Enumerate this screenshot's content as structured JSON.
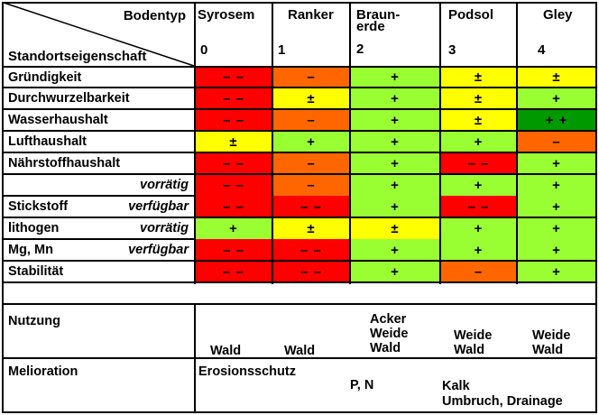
{
  "header": {
    "bodentyp_label": "Bodentyp",
    "standort_label": "Standortseigenschaft",
    "columns": [
      {
        "name": "Syrosem",
        "index": "0"
      },
      {
        "name": "Ranker",
        "index": "1"
      },
      {
        "name": "Braun-\nerde",
        "index": "2"
      },
      {
        "name": "Podsol",
        "index": "3"
      },
      {
        "name": "Gley",
        "index": "4"
      }
    ]
  },
  "rows": [
    {
      "label": "Gründigkeit",
      "sub": "",
      "cells": [
        {
          "symbol": "– –",
          "color": "#ff0000"
        },
        {
          "symbol": "–",
          "color": "#ff6600"
        },
        {
          "symbol": "+",
          "color": "#99ff33"
        },
        {
          "symbol": "±",
          "color": "#ffff00"
        },
        {
          "symbol": "±",
          "color": "#ffff00"
        }
      ]
    },
    {
      "label": "Durchwurzelbarkeit",
      "sub": "",
      "cells": [
        {
          "symbol": "– –",
          "color": "#ff0000"
        },
        {
          "symbol": "±",
          "color": "#ffff00"
        },
        {
          "symbol": "+",
          "color": "#99ff33"
        },
        {
          "symbol": "±",
          "color": "#ffff00"
        },
        {
          "symbol": "+",
          "color": "#99ff33"
        }
      ]
    },
    {
      "label": "Wasserhaushalt",
      "sub": "",
      "cells": [
        {
          "symbol": "– –",
          "color": "#ff0000"
        },
        {
          "symbol": "–",
          "color": "#ff6600"
        },
        {
          "symbol": "+",
          "color": "#99ff33"
        },
        {
          "symbol": "±",
          "color": "#ffff00"
        },
        {
          "symbol": "+ +",
          "color": "#009900"
        }
      ]
    },
    {
      "label": "Lufthaushalt",
      "sub": "",
      "cells": [
        {
          "symbol": "±",
          "color": "#ffff00"
        },
        {
          "symbol": "+",
          "color": "#99ff33"
        },
        {
          "symbol": "+",
          "color": "#99ff33"
        },
        {
          "symbol": "+",
          "color": "#99ff33"
        },
        {
          "symbol": "–",
          "color": "#ff6600"
        }
      ]
    },
    {
      "label": "Nährstoffhaushalt",
      "sub": "",
      "cells": [
        {
          "symbol": "– –",
          "color": "#ff0000"
        },
        {
          "symbol": "–",
          "color": "#ff6600"
        },
        {
          "symbol": "+",
          "color": "#99ff33"
        },
        {
          "symbol": "– –",
          "color": "#ff0000"
        },
        {
          "symbol": "+",
          "color": "#99ff33"
        }
      ]
    },
    {
      "label": "",
      "sub": "vorrätig",
      "cells": [
        {
          "symbol": "– –",
          "color": "#ff0000"
        },
        {
          "symbol": "–",
          "color": "#ff6600"
        },
        {
          "symbol": "+",
          "color": "#99ff33"
        },
        {
          "symbol": "+",
          "color": "#99ff33"
        },
        {
          "symbol": "+",
          "color": "#99ff33"
        }
      ]
    },
    {
      "label": "Stickstoff",
      "sub": "verfügbar",
      "cells": [
        {
          "symbol": "– –",
          "color": "#ff0000"
        },
        {
          "symbol": "– –",
          "color": "#ff0000"
        },
        {
          "symbol": "+",
          "color": "#99ff33"
        },
        {
          "symbol": "– –",
          "color": "#ff0000"
        },
        {
          "symbol": "+",
          "color": "#99ff33"
        }
      ]
    },
    {
      "label": "lithogen",
      "sub": "vorrätig",
      "cells": [
        {
          "symbol": "+",
          "color": "#99ff33"
        },
        {
          "symbol": "±",
          "color": "#ffff00"
        },
        {
          "symbol": "±",
          "color": "#ffff00"
        },
        {
          "symbol": "+",
          "color": "#99ff33"
        },
        {
          "symbol": "+",
          "color": "#99ff33"
        }
      ]
    },
    {
      "label": "Mg, Mn",
      "sub": "verfügbar",
      "cells": [
        {
          "symbol": "– –",
          "color": "#ff0000"
        },
        {
          "symbol": "– –",
          "color": "#ff0000"
        },
        {
          "symbol": "+",
          "color": "#99ff33"
        },
        {
          "symbol": "+",
          "color": "#99ff33"
        },
        {
          "symbol": "+",
          "color": "#99ff33"
        }
      ]
    },
    {
      "label": "Stabilität",
      "sub": "",
      "cells": [
        {
          "symbol": "– –",
          "color": "#ff0000"
        },
        {
          "symbol": "– –",
          "color": "#ff0000"
        },
        {
          "symbol": "+",
          "color": "#99ff33"
        },
        {
          "symbol": "–",
          "color": "#ff6600"
        },
        {
          "symbol": "+",
          "color": "#99ff33"
        }
      ]
    }
  ],
  "nutzung": {
    "label": "Nutzung",
    "values": [
      "Wald",
      "Wald",
      "Acker\nWeide\nWald",
      "Weide\nWald",
      "Weide\nWald"
    ]
  },
  "melioration": {
    "label": "Melioration",
    "erosion": "Erosionsschutz",
    "pn": "P, N",
    "kalk": "Kalk",
    "umbruch": "Umbruch, Drainage"
  }
}
